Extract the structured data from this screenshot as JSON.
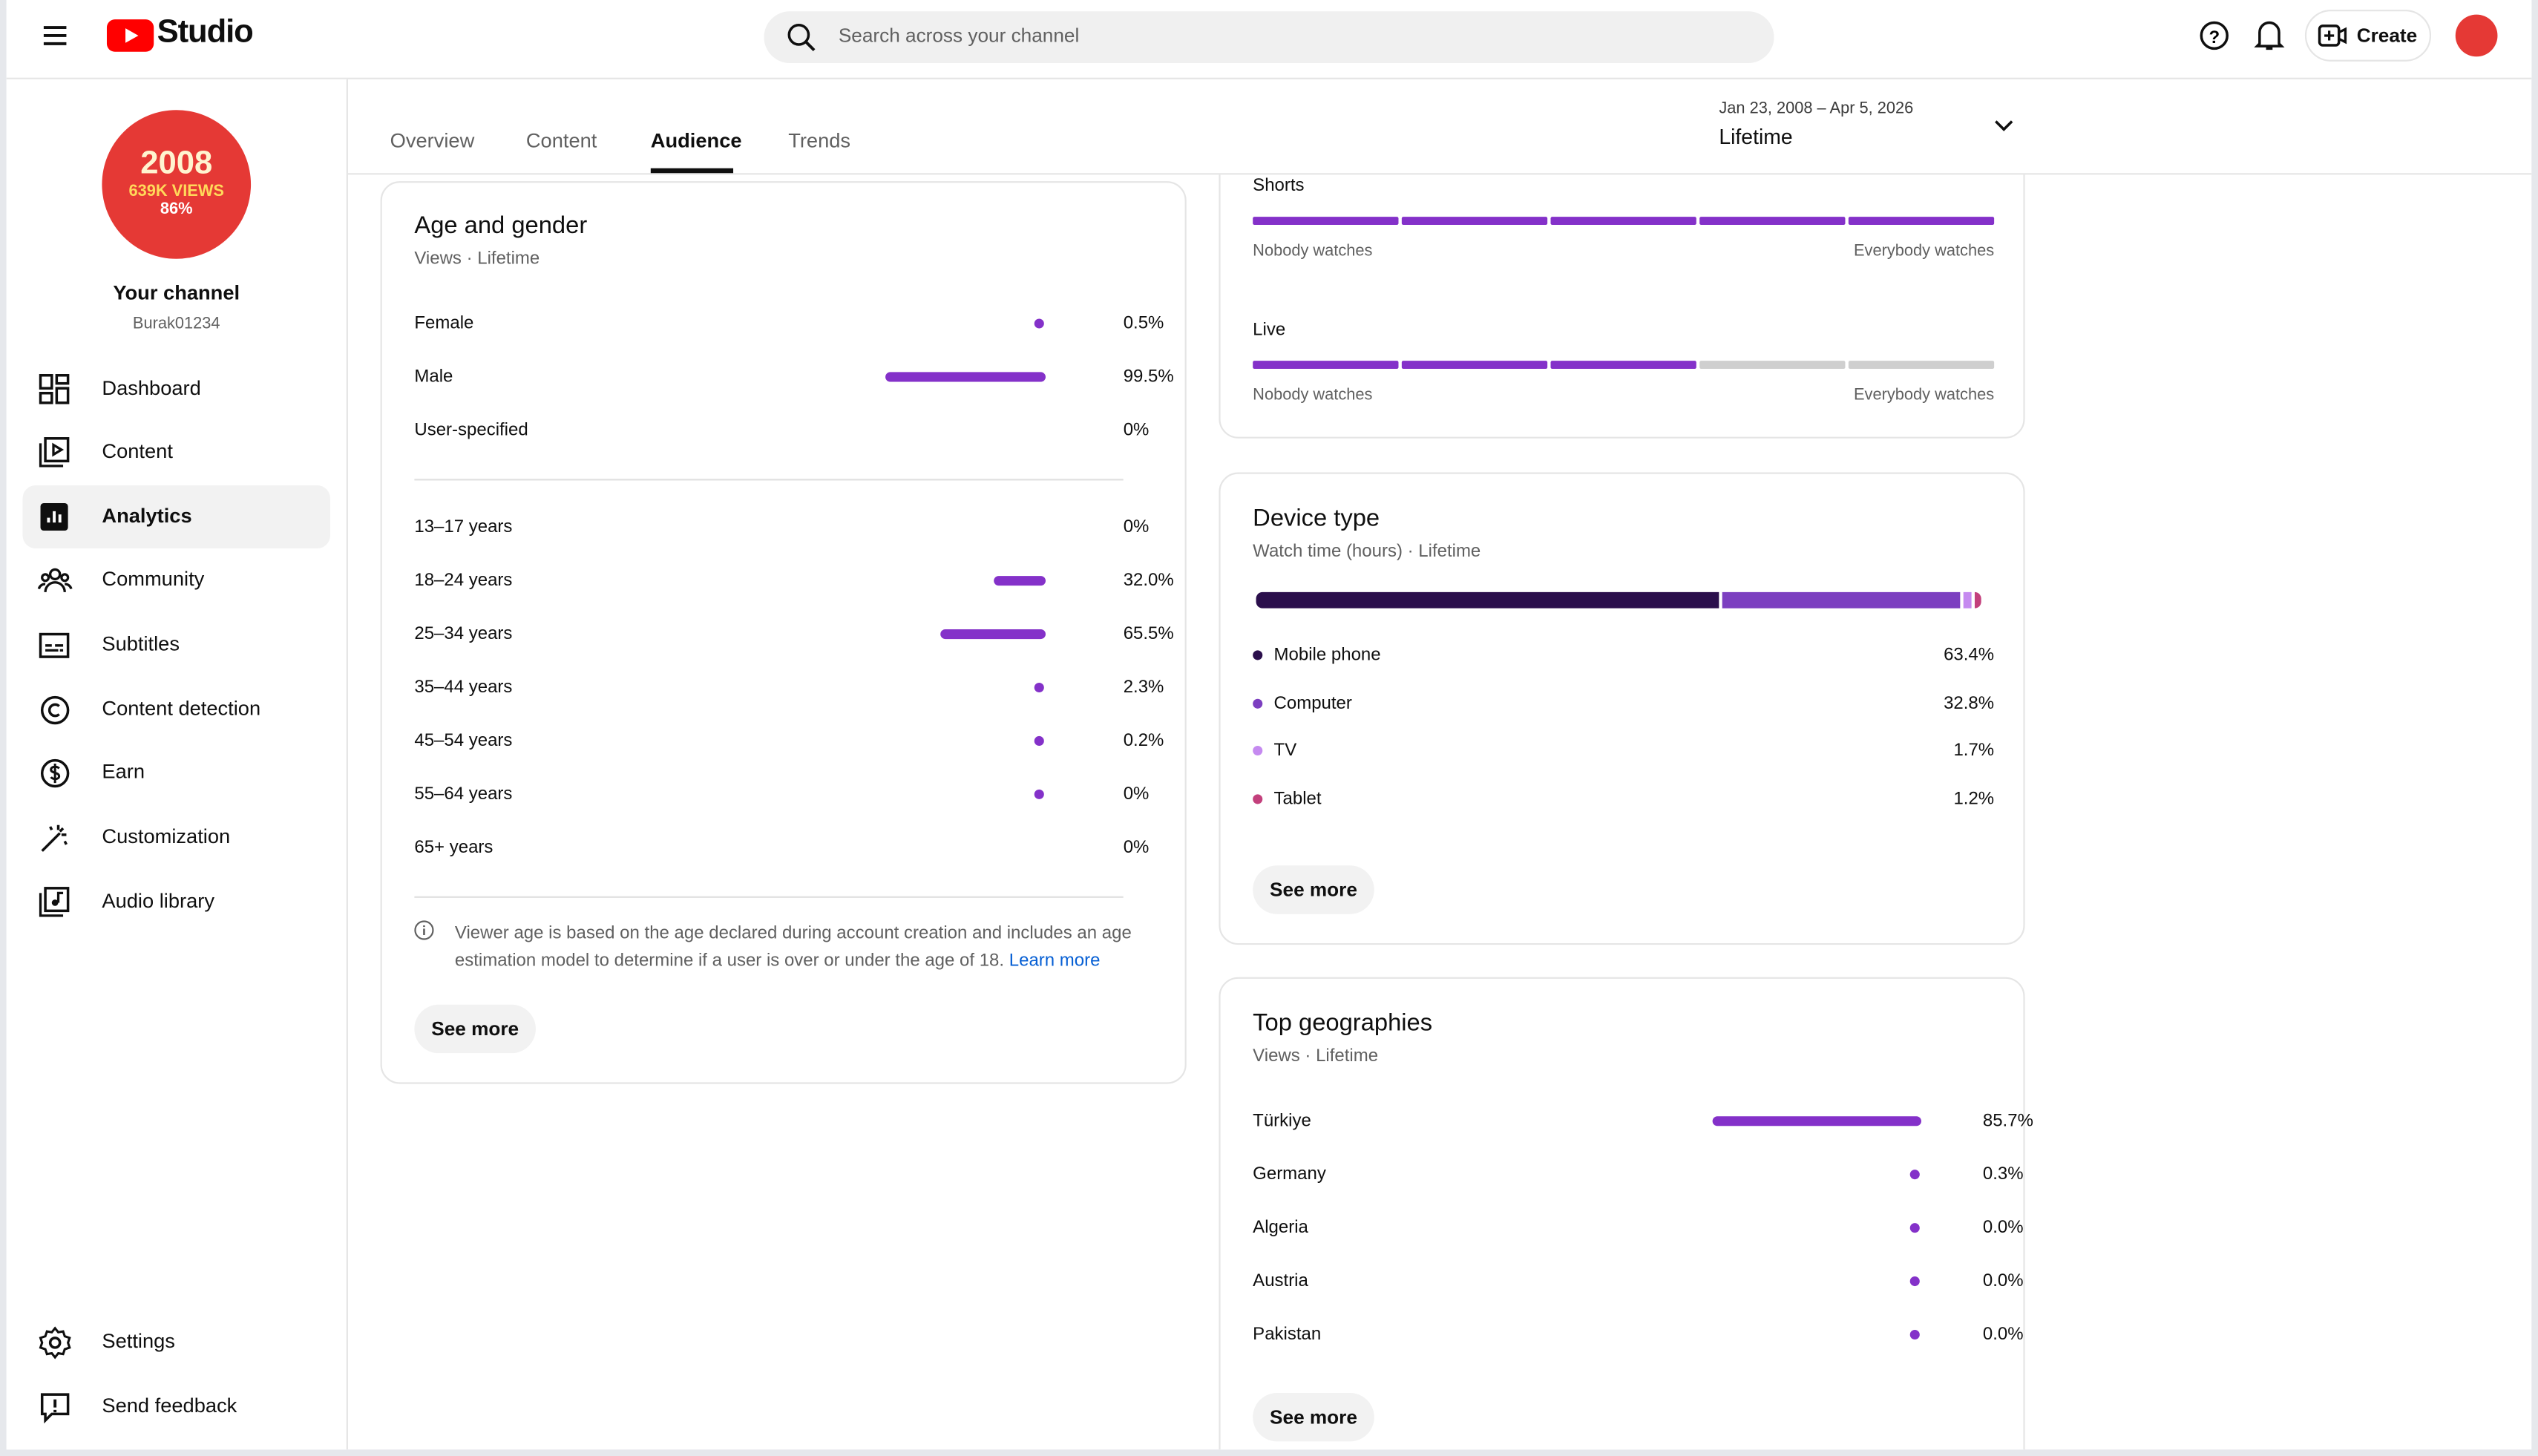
{
  "header": {
    "logo": "Studio",
    "search_placeholder": "Search across your channel",
    "create": "Create"
  },
  "sidebar": {
    "avatar": {
      "year": "2008",
      "views": "639K VIEWS",
      "percent": "86%"
    },
    "channel_name": "Your channel",
    "handle": "Burak01234",
    "nav": [
      "Dashboard",
      "Content",
      "Analytics",
      "Community",
      "Subtitles",
      "Content detection",
      "Earn",
      "Customization",
      "Audio library"
    ],
    "bottom_nav": [
      "Settings",
      "Send feedback"
    ]
  },
  "tabs": [
    "Overview",
    "Content",
    "Audience",
    "Trends"
  ],
  "date_range": {
    "dates": "Jan 23, 2008 – Apr 5, 2026",
    "period": "Lifetime"
  },
  "retention": [
    {
      "label": "Shorts",
      "left": "Nobody watches",
      "right": "Everybody watches"
    },
    {
      "label": "Live",
      "left": "Nobody watches",
      "right": "Everybody watches"
    }
  ],
  "age_gender": {
    "title": "Age and gender",
    "subtitle": "Views · Lifetime",
    "gender": [
      {
        "label": "Female",
        "value": 0.5,
        "value_label": "0.5%"
      },
      {
        "label": "Male",
        "value": 99.5,
        "value_label": "99.5%"
      },
      {
        "label": "User-specified",
        "value": 0,
        "value_label": "0%"
      }
    ],
    "ages": [
      {
        "label": "13–17 years",
        "value": 0,
        "value_label": "0%"
      },
      {
        "label": "18–24 years",
        "value": 32.0,
        "value_label": "32.0%"
      },
      {
        "label": "25–34 years",
        "value": 65.5,
        "value_label": "65.5%"
      },
      {
        "label": "35–44 years",
        "value": 2.3,
        "value_label": "2.3%"
      },
      {
        "label": "45–54 years",
        "value": 0.2,
        "value_label": "0.2%"
      },
      {
        "label": "55–64 years",
        "value": 0.04,
        "value_label": "0%"
      },
      {
        "label": "65+ years",
        "value": 0,
        "value_label": "0%"
      }
    ],
    "note": "Viewer age is based on the age declared during account creation and includes an age estimation model to determine if a user is over or under the age of 18.",
    "learn_more": "Learn more",
    "see_more": "See more"
  },
  "device": {
    "title": "Device type",
    "subtitle": "Watch time (hours) · Lifetime",
    "items": [
      {
        "label": "Mobile phone",
        "value": 63.4,
        "value_label": "63.4%",
        "color": "#2b0f4c"
      },
      {
        "label": "Computer",
        "value": 32.8,
        "value_label": "32.8%",
        "color": "#7c3fc0"
      },
      {
        "label": "TV",
        "value": 1.7,
        "value_label": "1.7%",
        "color": "#c58af0"
      },
      {
        "label": "Tablet",
        "value": 1.2,
        "value_label": "1.2%",
        "color": "#c3407c"
      }
    ],
    "see_more": "See more"
  },
  "geographies": {
    "title": "Top geographies",
    "subtitle": "Views · Lifetime",
    "items": [
      {
        "label": "Türkiye",
        "value": 85.7,
        "value_label": "85.7%"
      },
      {
        "label": "Germany",
        "value": 0.3,
        "value_label": "0.3%"
      },
      {
        "label": "Algeria",
        "value": 0.04,
        "value_label": "0.0%"
      },
      {
        "label": "Austria",
        "value": 0.04,
        "value_label": "0.0%"
      },
      {
        "label": "Pakistan",
        "value": 0.04,
        "value_label": "0.0%"
      }
    ],
    "see_more": "See more"
  }
}
